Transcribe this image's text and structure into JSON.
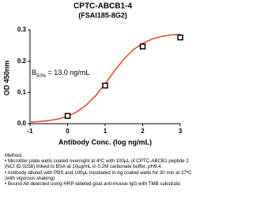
{
  "chart_data": {
    "type": "line",
    "title": "CPTC-ABCB1-4",
    "subtitle": "(FSAI185-8G2)",
    "x_label": "Antibody Conc. (log ng/mL)",
    "y_label": "OD 450nm",
    "annotation": [
      "B",
      "50%",
      " = 13.0 ng/mL"
    ],
    "x": [
      0,
      1,
      2,
      3
    ],
    "values": [
      0.025,
      0.122,
      0.247,
      0.276
    ],
    "marker_color": "#000000",
    "fit": {
      "color": "#e8502a",
      "x": [
        -1,
        -0.75,
        -0.5,
        -0.25,
        0,
        0.25,
        0.5,
        0.75,
        1,
        1.25,
        1.5,
        1.75,
        2,
        2.25,
        2.5,
        2.75,
        3
      ],
      "values": [
        0.005,
        0.007,
        0.01,
        0.015,
        0.024,
        0.038,
        0.06,
        0.09,
        0.128,
        0.169,
        0.207,
        0.237,
        0.257,
        0.271,
        0.279,
        0.284,
        0.286
      ]
    },
    "xlim": [
      -1,
      3
    ],
    "xticks": [
      -1,
      0,
      1,
      2,
      3
    ],
    "ylim": [
      0,
      0.3
    ],
    "yticks": [
      {
        "value": 0,
        "label": "0.0"
      },
      0.1,
      0.2,
      0.3
    ]
  },
  "notes": {
    "heading": "Method:",
    "items": [
      "• Microtiter plate wells coated overnight at 4ºC  with 100µL of CPTC-ABCB1 peptide 2 (NCI ID 0258) linked to BSA at 10µg/mL in 0.2M carbonate buffer, pH9.4.",
      "• Antibody diluted with PBS and 100µL incubated in Ag coated wells for 30 min at 37ºC (with vigorous shaking)",
      "• Bound Ab detected using HRP-labeled goat anti-mouse IgG with TMB substrate."
    ]
  }
}
